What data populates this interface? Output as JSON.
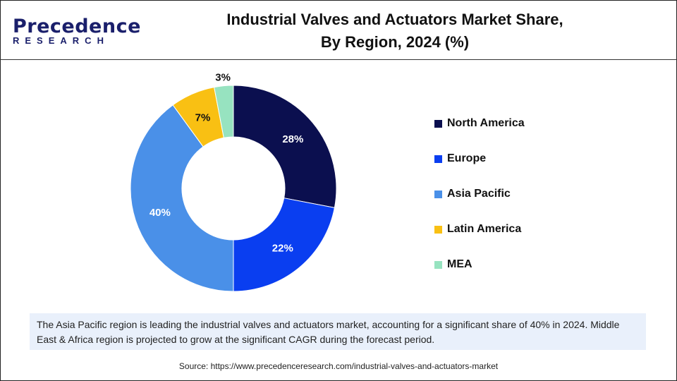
{
  "logo": {
    "line1": "Precedence",
    "line2": "RESEARCH"
  },
  "title_line1": "Industrial Valves and Actuators Market  Share,",
  "title_line2": "By Region, 2024 (%)",
  "chart_data": {
    "type": "pie",
    "donut": true,
    "categories": [
      "North America",
      "Europe",
      "Asia Pacific",
      "Latin America",
      "MEA"
    ],
    "values": [
      28,
      22,
      40,
      7,
      3
    ],
    "labels": [
      "28%",
      "22%",
      "40%",
      "7%",
      "3%"
    ],
    "colors": [
      "#0b0f4f",
      "#0a3ef0",
      "#4a90e8",
      "#f9c013",
      "#97e3c0"
    ],
    "legend_position": "right"
  },
  "note": "The Asia Pacific region is leading the industrial valves and actuators market, accounting for a significant share of 40% in 2024. Middle East & Africa region is projected to grow at the significant CAGR during the forecast period.",
  "source": "Source: https://www.precedenceresearch.com/industrial-valves-and-actuators-market"
}
